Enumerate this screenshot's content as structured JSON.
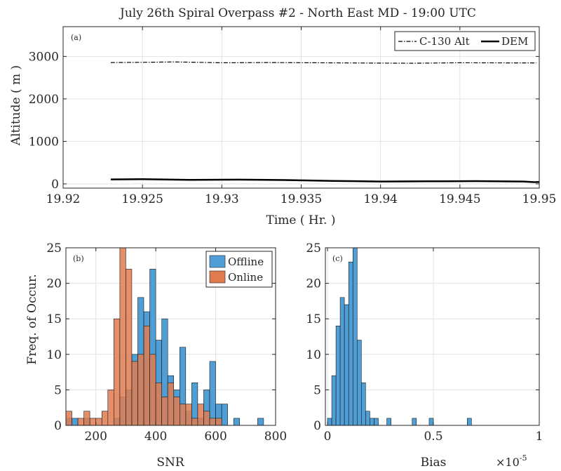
{
  "figure": {
    "title": "July 26th Spiral Overpass #2 - North East MD - 19:00 UTC"
  },
  "chart_data": [
    {
      "type": "line",
      "panel": "(a)",
      "xlabel": "Time ( Hr. )",
      "ylabel": "Altitude ( m )",
      "xlim": [
        19.92,
        19.95
      ],
      "ylim": [
        -100,
        3700
      ],
      "xticks": [
        19.92,
        19.925,
        19.93,
        19.935,
        19.94,
        19.945,
        19.95
      ],
      "xtick_labels": [
        "19.92",
        "19.925",
        "19.93",
        "19.935",
        "19.94",
        "19.945",
        "19.95"
      ],
      "yticks": [
        0,
        1000,
        2000,
        3000
      ],
      "ytick_labels": [
        "0",
        "1000",
        "2000",
        "3000"
      ],
      "grid": true,
      "legend_position": "top-right",
      "series": [
        {
          "name": "C-130 Alt",
          "style": "dash-dot",
          "color": "#000000",
          "x": [
            19.923,
            19.925,
            19.927,
            19.93,
            19.933,
            19.936,
            19.939,
            19.942,
            19.945,
            19.948,
            19.9498
          ],
          "y": [
            2855,
            2860,
            2870,
            2850,
            2855,
            2850,
            2845,
            2840,
            2850,
            2848,
            2848
          ]
        },
        {
          "name": "DEM",
          "style": "solid",
          "color": "#000000",
          "x": [
            19.923,
            19.925,
            19.928,
            19.931,
            19.934,
            19.937,
            19.94,
            19.943,
            19.946,
            19.949,
            19.9497,
            19.95
          ],
          "y": [
            105,
            110,
            95,
            100,
            90,
            70,
            55,
            60,
            65,
            55,
            40,
            45
          ]
        }
      ]
    },
    {
      "type": "bar",
      "subtype": "histogram",
      "panel": "(b)",
      "xlabel": "SNR",
      "ylabel": "Freq. of Occur.",
      "xlim": [
        100,
        800
      ],
      "ylim": [
        0,
        25
      ],
      "xticks": [
        200,
        400,
        600,
        800
      ],
      "xtick_labels": [
        "200",
        "400",
        "600",
        "800"
      ],
      "yticks": [
        0,
        5,
        10,
        15,
        20,
        25
      ],
      "ytick_labels": [
        "0",
        "5",
        "10",
        "15",
        "20",
        "25"
      ],
      "grid": true,
      "legend_position": "top-right",
      "bin_width": 20,
      "series": [
        {
          "name": "Offline",
          "color": "#4f9fd6",
          "bins": [
            {
              "x0": 100,
              "count": 1
            },
            {
              "x0": 120,
              "count": 1
            },
            {
              "x0": 160,
              "count": 1
            },
            {
              "x0": 260,
              "count": 1
            },
            {
              "x0": 280,
              "count": 4
            },
            {
              "x0": 300,
              "count": 5
            },
            {
              "x0": 320,
              "count": 10
            },
            {
              "x0": 340,
              "count": 18
            },
            {
              "x0": 360,
              "count": 16
            },
            {
              "x0": 380,
              "count": 22
            },
            {
              "x0": 400,
              "count": 12
            },
            {
              "x0": 420,
              "count": 15
            },
            {
              "x0": 440,
              "count": 7
            },
            {
              "x0": 460,
              "count": 5
            },
            {
              "x0": 480,
              "count": 11
            },
            {
              "x0": 500,
              "count": 2
            },
            {
              "x0": 520,
              "count": 6
            },
            {
              "x0": 540,
              "count": 1
            },
            {
              "x0": 560,
              "count": 5
            },
            {
              "x0": 580,
              "count": 9
            },
            {
              "x0": 600,
              "count": 3
            },
            {
              "x0": 620,
              "count": 3
            },
            {
              "x0": 660,
              "count": 1
            },
            {
              "x0": 740,
              "count": 1
            }
          ]
        },
        {
          "name": "Online",
          "color": "#e07b50",
          "bins": [
            {
              "x0": 100,
              "count": 2
            },
            {
              "x0": 140,
              "count": 1
            },
            {
              "x0": 160,
              "count": 2
            },
            {
              "x0": 180,
              "count": 1
            },
            {
              "x0": 200,
              "count": 1
            },
            {
              "x0": 220,
              "count": 2
            },
            {
              "x0": 240,
              "count": 5
            },
            {
              "x0": 260,
              "count": 15
            },
            {
              "x0": 280,
              "count": 25
            },
            {
              "x0": 300,
              "count": 22
            },
            {
              "x0": 320,
              "count": 9
            },
            {
              "x0": 340,
              "count": 10
            },
            {
              "x0": 360,
              "count": 14
            },
            {
              "x0": 380,
              "count": 10
            },
            {
              "x0": 400,
              "count": 6
            },
            {
              "x0": 420,
              "count": 4
            },
            {
              "x0": 440,
              "count": 6
            },
            {
              "x0": 460,
              "count": 4
            },
            {
              "x0": 480,
              "count": 3
            },
            {
              "x0": 500,
              "count": 3
            },
            {
              "x0": 520,
              "count": 1
            },
            {
              "x0": 540,
              "count": 3
            },
            {
              "x0": 560,
              "count": 2
            },
            {
              "x0": 580,
              "count": 1
            },
            {
              "x0": 600,
              "count": 1
            }
          ]
        }
      ]
    },
    {
      "type": "bar",
      "subtype": "histogram",
      "panel": "(c)",
      "xlabel": "Bias",
      "x_exponent_label": "×10",
      "x_exponent": "-5",
      "xlim": [
        -0.01,
        1.0
      ],
      "ylim": [
        0,
        25
      ],
      "xticks": [
        0,
        0.5,
        1
      ],
      "xtick_labels": [
        "0",
        "0.5",
        "1"
      ],
      "yticks": [
        0,
        5,
        10,
        15,
        20,
        25
      ],
      "ytick_labels": [
        "0",
        "5",
        "10",
        "15",
        "20",
        "25"
      ],
      "grid": true,
      "bin_width": 0.02,
      "series": [
        {
          "name": "",
          "color": "#4f9fd6",
          "bins": [
            {
              "x0": 0.0,
              "count": 1
            },
            {
              "x0": 0.02,
              "count": 7
            },
            {
              "x0": 0.04,
              "count": 14
            },
            {
              "x0": 0.06,
              "count": 18
            },
            {
              "x0": 0.08,
              "count": 17
            },
            {
              "x0": 0.1,
              "count": 23
            },
            {
              "x0": 0.12,
              "count": 25
            },
            {
              "x0": 0.14,
              "count": 12
            },
            {
              "x0": 0.16,
              "count": 6
            },
            {
              "x0": 0.18,
              "count": 2
            },
            {
              "x0": 0.2,
              "count": 1
            },
            {
              "x0": 0.22,
              "count": 1
            },
            {
              "x0": 0.28,
              "count": 1
            },
            {
              "x0": 0.4,
              "count": 1
            },
            {
              "x0": 0.48,
              "count": 1
            },
            {
              "x0": 0.66,
              "count": 1
            }
          ]
        }
      ]
    }
  ]
}
